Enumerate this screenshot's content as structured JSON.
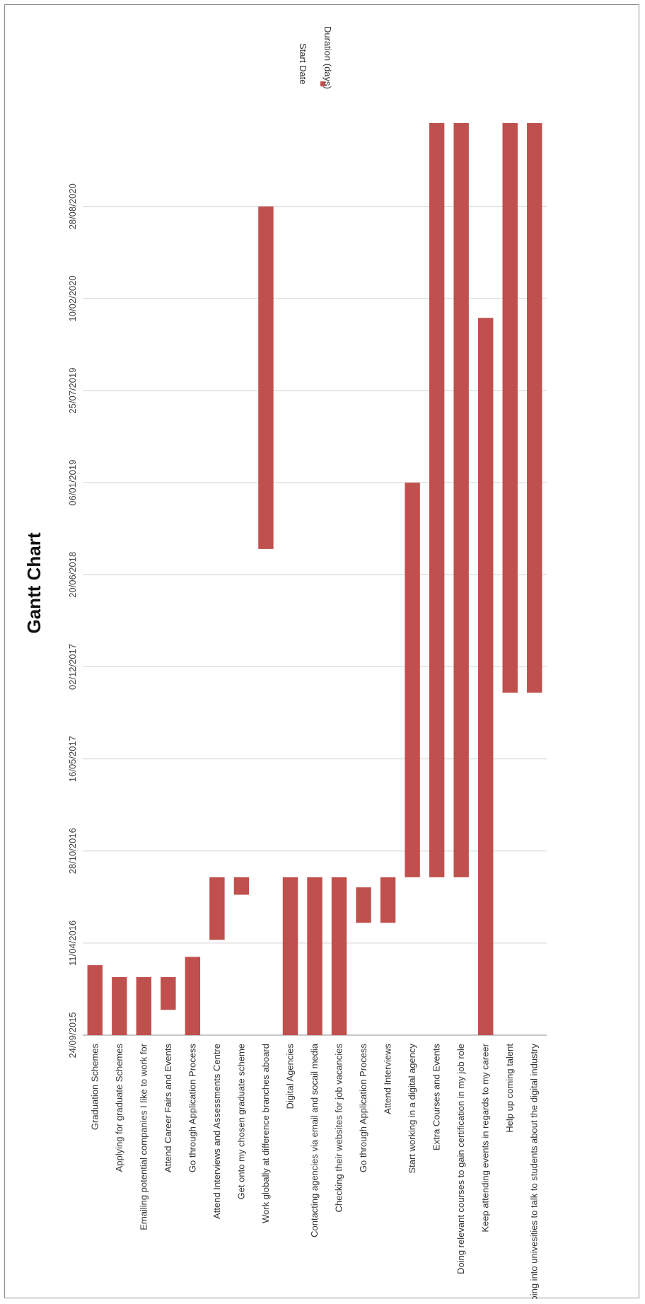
{
  "chart_data": {
    "type": "bar",
    "orientation": "gantt-rotated",
    "title": "Gantt Chart",
    "legend": [
      {
        "name": "Start Date",
        "color": "none"
      },
      {
        "name": "Duration (days)",
        "color": "#c0504d"
      }
    ],
    "legend_placement": "top-right",
    "grid": true,
    "bar_color": "#c0504d",
    "x_ticks": [
      "24/09/2015",
      "11/04/2016",
      "28/10/2016",
      "16/05/2017",
      "02/12/2017",
      "20/06/2018",
      "06/01/2019",
      "25/07/2019",
      "10/02/2020",
      "28/08/2020"
    ],
    "xlim": [
      "24/09/2015",
      "25/02/2021"
    ],
    "tasks": [
      {
        "label": "Graduation Schemes",
        "start": "24/09/2015",
        "end": "23/02/2016"
      },
      {
        "label": "Applying for graduate Schemes",
        "start": "24/09/2015",
        "end": "28/01/2016"
      },
      {
        "label": "Emailing potential companies I like to work for",
        "start": "24/09/2015",
        "end": "28/01/2016"
      },
      {
        "label": "Attend Career Fairs and Events",
        "start": "18/11/2015",
        "end": "28/01/2016"
      },
      {
        "label": "Go through Application Process",
        "start": "24/09/2015",
        "end": "12/03/2016"
      },
      {
        "label": "Attend Interviews and Assessments Centre",
        "start": "18/04/2016",
        "end": "01/09/2016"
      },
      {
        "label": "Get onto my chosen graduate scheme",
        "start": "25/07/2016",
        "end": "01/09/2016"
      },
      {
        "label": "Work globally at difference branches aboard",
        "start": "15/08/2018",
        "end": "28/08/2020"
      },
      {
        "label": "Digital Agencies",
        "start": "24/09/2015",
        "end": "01/09/2016"
      },
      {
        "label": "Contacting agencies via email and socail media",
        "start": "24/09/2015",
        "end": "01/09/2016"
      },
      {
        "label": "Checking their websites for job vacancies",
        "start": "24/09/2015",
        "end": "01/09/2016"
      },
      {
        "label": "Go through Application Process",
        "start": "25/05/2016",
        "end": "10/08/2016"
      },
      {
        "label": "Attend Interviews",
        "start": "25/05/2016",
        "end": "01/09/2016"
      },
      {
        "label": "Start working in a digital agency",
        "start": "01/09/2016",
        "end": "06/01/2019"
      },
      {
        "label": "Extra Courses and Events",
        "start": "01/09/2016",
        "end": "25/02/2021"
      },
      {
        "label": "Doing relevant courses to gain certification in my job role",
        "start": "01/09/2016",
        "end": "25/02/2021"
      },
      {
        "label": "Keep attending events in regards to my career",
        "start": "24/09/2015",
        "end": "30/12/2019"
      },
      {
        "label": "Help up coming talent",
        "start": "07/10/2017",
        "end": "25/02/2021"
      },
      {
        "label": "Going into univesities to talk to students about the digital industry",
        "start": "07/10/2017",
        "end": "25/02/2021"
      }
    ]
  }
}
